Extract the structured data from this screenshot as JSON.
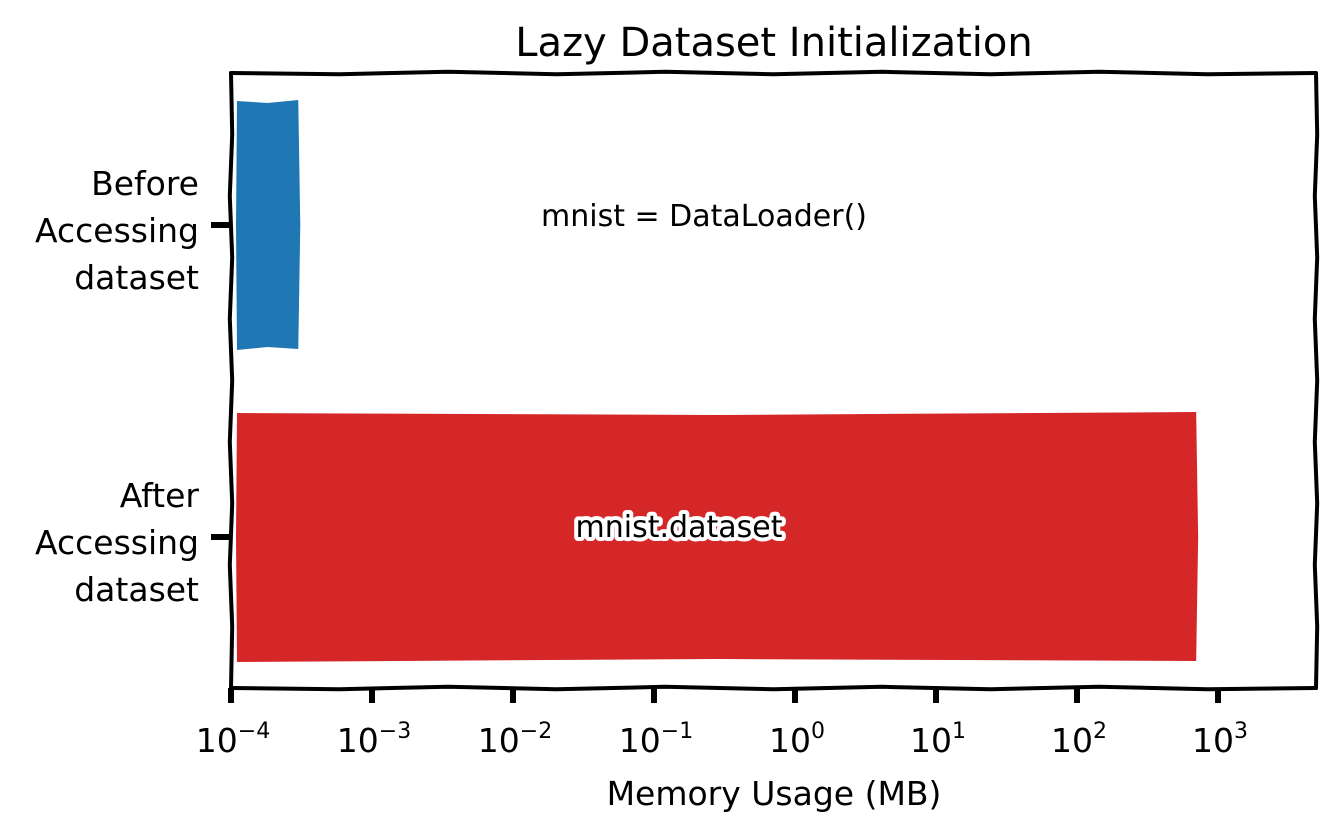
{
  "chart_data": {
    "type": "bar",
    "orientation": "horizontal",
    "title": "Lazy Dataset Initialization",
    "xlabel": "Memory Usage (MB)",
    "ylabel": "",
    "x_scale": "log",
    "xlim": [
      0.0001,
      5000
    ],
    "x_ticks": [
      {
        "base": "10",
        "exp": "−4",
        "value": 0.0001
      },
      {
        "base": "10",
        "exp": "−3",
        "value": 0.001
      },
      {
        "base": "10",
        "exp": "−2",
        "value": 0.01
      },
      {
        "base": "10",
        "exp": "−1",
        "value": 0.1
      },
      {
        "base": "10",
        "exp": "0",
        "value": 1
      },
      {
        "base": "10",
        "exp": "1",
        "value": 10
      },
      {
        "base": "10",
        "exp": "2",
        "value": 100
      },
      {
        "base": "10",
        "exp": "3",
        "value": 1000
      }
    ],
    "categories": [
      [
        "Before",
        "Accessing",
        "dataset"
      ],
      [
        "After",
        "Accessing",
        "dataset"
      ]
    ],
    "values": [
      0.0003,
      700
    ],
    "colors": [
      "#1f77b4",
      "#d62728"
    ],
    "annotations": [
      "mnist = DataLoader()",
      "mnist.dataset"
    ],
    "grid": false,
    "legend": "none"
  }
}
